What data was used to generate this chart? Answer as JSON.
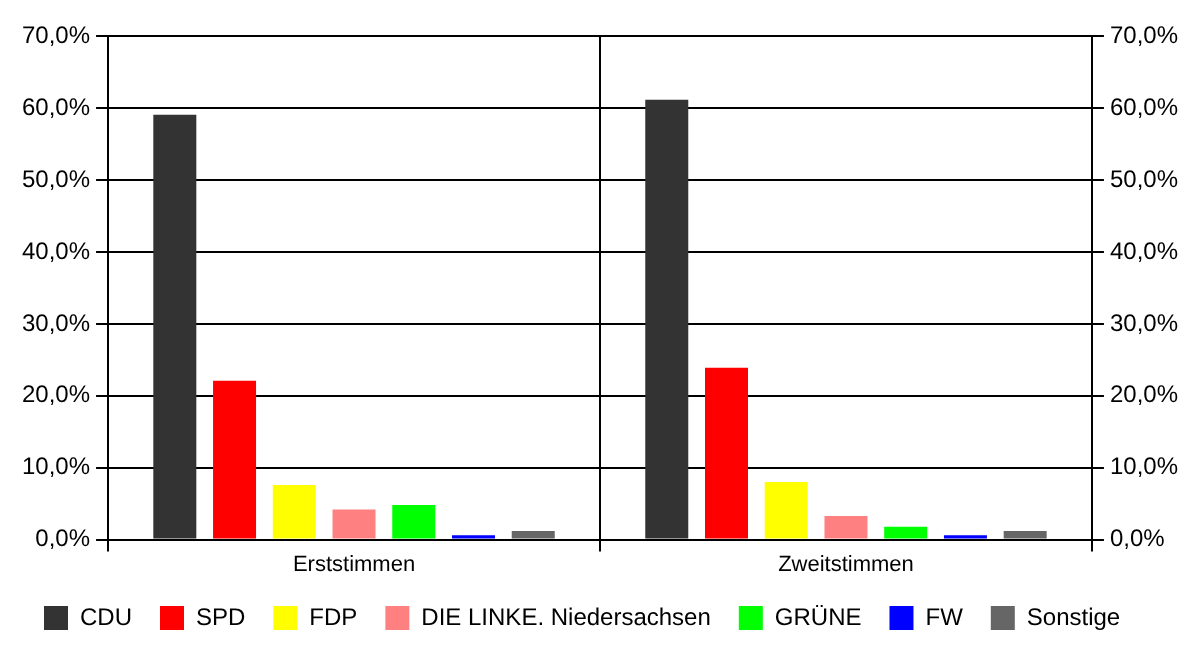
{
  "chart_data": {
    "type": "bar",
    "categories": [
      "Erststimmen",
      "Zweitstimmen"
    ],
    "series": [
      {
        "name": "CDU",
        "color": "#333333",
        "values": [
          59.1,
          61.2
        ]
      },
      {
        "name": "SPD",
        "color": "#ff0000",
        "values": [
          22.1,
          23.9
        ]
      },
      {
        "name": "FDP",
        "color": "#ffff00",
        "values": [
          7.6,
          8.0
        ]
      },
      {
        "name": "DIE LINKE. Niedersachsen",
        "color": "#ff8080",
        "values": [
          4.2,
          3.3
        ]
      },
      {
        "name": "GRÜNE",
        "color": "#00ff00",
        "values": [
          4.8,
          1.8
        ]
      },
      {
        "name": "FW",
        "color": "#0000ff",
        "values": [
          0.6,
          0.6
        ]
      },
      {
        "name": "Sonstige",
        "color": "#666666",
        "values": [
          1.2,
          1.2
        ]
      }
    ],
    "ylim": [
      0,
      70
    ],
    "yticks": [
      {
        "value": 0,
        "label": "0,0%"
      },
      {
        "value": 10,
        "label": "10,0%"
      },
      {
        "value": 20,
        "label": "20,0%"
      },
      {
        "value": 30,
        "label": "30,0%"
      },
      {
        "value": 40,
        "label": "40,0%"
      },
      {
        "value": 50,
        "label": "50,0%"
      },
      {
        "value": 60,
        "label": "60,0%"
      },
      {
        "value": 70,
        "label": "70,0%"
      }
    ],
    "y2lim": [
      0,
      70
    ],
    "y2ticks": [
      {
        "value": 0,
        "label": "0,0%"
      },
      {
        "value": 10,
        "label": "10,0%"
      },
      {
        "value": 20,
        "label": "20,0%"
      },
      {
        "value": 30,
        "label": "30,0%"
      },
      {
        "value": 40,
        "label": "40,0%"
      },
      {
        "value": 50,
        "label": "50,0%"
      },
      {
        "value": 60,
        "label": "60,0%"
      },
      {
        "value": 70,
        "label": "70,0%"
      }
    ],
    "grid": "y",
    "legend": "bottom"
  }
}
